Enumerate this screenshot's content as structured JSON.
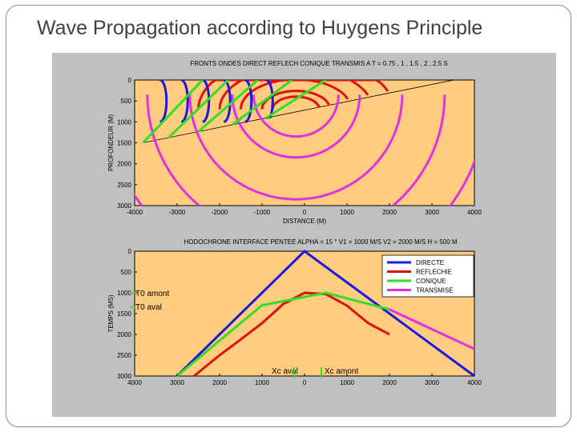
{
  "slide": {
    "title": "Wave Propagation according to Huygens Principle"
  },
  "colors": {
    "figure_bg": "#c0c0c0",
    "plot_bg": "#ffcc80",
    "direct": "#1a1adc",
    "reflected": "#e01010",
    "conical": "#33dd22",
    "transmitted": "#e030e0"
  },
  "chart_data": [
    {
      "type": "line",
      "title": "FRONTS ONDES DIRECT REFLECH CONIQUE TRANSMIS A T = 0.75 , 1 , 1.5 , 2 , 2.5 S",
      "xlabel": "DISTANCE (M)",
      "ylabel": "PROFONDEUR (M)",
      "xlim": [
        -4000,
        4000
      ],
      "ylim": [
        0,
        3000
      ],
      "y_inverted": true,
      "xticks": [
        "-4000",
        "-3000",
        "-2000",
        "-1000",
        "0",
        "1000",
        "2000",
        "3000",
        "4000"
      ],
      "yticks": [
        "0",
        "500",
        "1000",
        "1500",
        "2000",
        "2500",
        "3000"
      ],
      "interface": {
        "x": [
          -3800,
          4000
        ],
        "y": [
          1500,
          -100
        ]
      },
      "times": [
        0.75,
        1,
        1.5,
        2,
        2.5
      ],
      "series": [],
      "grid": false
    },
    {
      "type": "line",
      "title": "HODOCHRONE INTERFACE PENTEE ALPHA = 15 ° V1 = 1000 M/S V2 = 2000 M/S H = 500 M",
      "xlabel": "",
      "ylabel": "TEMPS (MS)",
      "xlim": [
        4000,
        -4000
      ],
      "ylim": [
        0,
        3000
      ],
      "y_inverted": true,
      "xticks": [
        "4000",
        "3000",
        "2000",
        "1000",
        "0",
        "1000",
        "2000",
        "3000",
        "4000"
      ],
      "yticks": [
        "0",
        "500",
        "1000",
        "1500",
        "2000",
        "2500",
        "3000"
      ],
      "legend": {
        "position": "top-right"
      },
      "series": [
        {
          "name": "DIRECTE",
          "color": "#1a1adc",
          "x": [
            -3000,
            0,
            4000
          ],
          "y": [
            3000,
            0,
            3000
          ]
        },
        {
          "name": "REFLECHIE",
          "color": "#e01010",
          "x": [
            -2600,
            -2000,
            -1500,
            -1000,
            -500,
            0,
            500,
            1000,
            1500,
            2000
          ],
          "y": [
            3000,
            2500,
            2120,
            1730,
            1270,
            1000,
            1030,
            1310,
            1730,
            2000
          ]
        },
        {
          "name": "CONIQUE",
          "color": "#33dd22",
          "x": [
            -3000,
            -1000,
            500,
            2000
          ],
          "y": [
            3000,
            1300,
            1000,
            1400
          ]
        },
        {
          "name": "TRANSMISE",
          "color": "#e030e0",
          "x": [
            2000,
            4000
          ],
          "y": [
            1400,
            2350
          ]
        }
      ],
      "annotations": [
        "T0 amont",
        "T0 aval",
        "Xc aval",
        "Xc amont"
      ],
      "grid": false
    }
  ]
}
